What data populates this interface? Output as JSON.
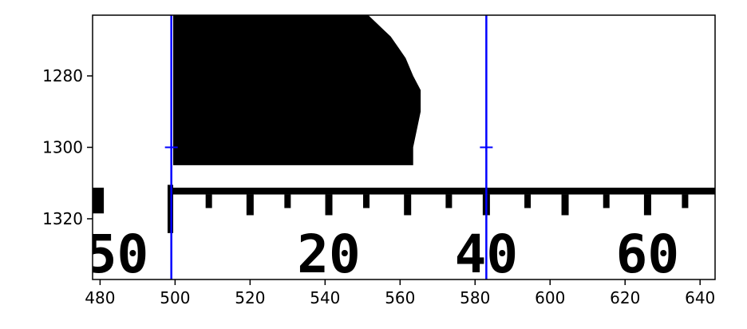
{
  "chart_data": {
    "type": "image",
    "title": "",
    "xlabel": "",
    "ylabel": "",
    "xlim": [
      478,
      644
    ],
    "ylim": [
      1337,
      1263
    ],
    "y_inverted": true,
    "grid": false,
    "x_ticks": [
      480,
      500,
      520,
      540,
      560,
      580,
      600,
      620,
      640
    ],
    "y_ticks": [
      1280,
      1300,
      1320
    ],
    "vertical_lines": [
      {
        "x": 499,
        "color": "#0000ff"
      },
      {
        "x": 583,
        "color": "#0000ff"
      }
    ],
    "markers": [
      {
        "x": 499,
        "y": 1300,
        "symbol": "+",
        "color": "#0000ff"
      },
      {
        "x": 583,
        "y": 1300,
        "symbol": "+",
        "color": "#0000ff"
      }
    ],
    "image_content": {
      "black_shape_outline": [
        [
          499.5,
          1263
        ],
        [
          551.5,
          1263
        ],
        [
          553.5,
          1265
        ],
        [
          555.5,
          1267
        ],
        [
          557.5,
          1269
        ],
        [
          559.5,
          1272
        ],
        [
          561.5,
          1275
        ],
        [
          563.5,
          1280
        ],
        [
          565.5,
          1284
        ],
        [
          565.5,
          1290
        ],
        [
          564.5,
          1295
        ],
        [
          563.5,
          1300
        ],
        [
          563.5,
          1305
        ],
        [
          499.5,
          1305
        ]
      ],
      "ruler": {
        "bar_y": [
          1311.3,
          1313.2
        ],
        "bar_x": [
          498.5,
          644
        ],
        "left_fragment": {
          "x": [
            478,
            481
          ],
          "y": [
            1311.3,
            1318.5
          ]
        },
        "left_post": {
          "x": [
            498,
            499.5
          ],
          "y": [
            1310.5,
            1324
          ]
        },
        "tick_positions": [
          509,
          520,
          530,
          541,
          551,
          562,
          573,
          583,
          594,
          604,
          615,
          626,
          636
        ],
        "long_ticks": [
          520,
          541,
          562,
          583,
          604,
          626
        ],
        "short_tick_end_y": 1317,
        "long_tick_end_y": 1319
      },
      "ruler_labels": [
        {
          "text": "50",
          "x": 484.5
        },
        {
          "text": "20",
          "x": 541
        },
        {
          "text": "40",
          "x": 583
        },
        {
          "text": "60",
          "x": 626
        }
      ],
      "ruler_label_baseline_y": 1335
    }
  }
}
